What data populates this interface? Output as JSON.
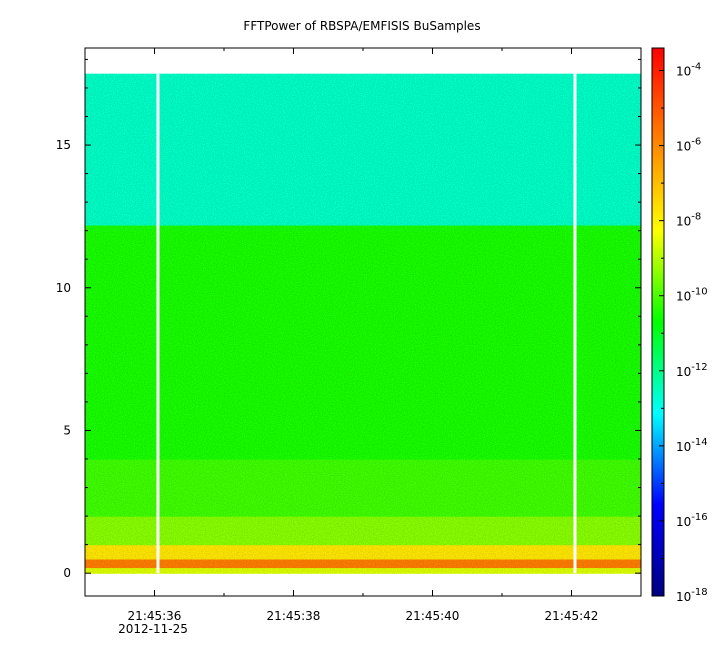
{
  "chart_data": {
    "type": "heatmap",
    "title": "FFTPower of RBSPA/EMFISIS  BuSamples",
    "date_label": "2012-11-25",
    "xlabel": "",
    "ylabel": "",
    "x_tick_labels": [
      "21:45:36",
      "21:45:38",
      "21:45:40",
      "21:45:42"
    ],
    "x_tick_seconds": [
      36,
      38,
      40,
      42
    ],
    "xlim_seconds": [
      35.0,
      43.0
    ],
    "y_ticks": [
      0,
      5,
      10,
      15
    ],
    "ylim": [
      -0.8,
      18.4
    ],
    "data_ymax": 17.5,
    "data_gaps_seconds": [
      36.05,
      42.05
    ],
    "bands": [
      {
        "y0": 0.0,
        "y1": 0.2,
        "log_power": -8.6
      },
      {
        "y0": 0.2,
        "y1": 0.5,
        "log_power": -5.8
      },
      {
        "y0": 0.5,
        "y1": 1.0,
        "log_power": -7.8
      },
      {
        "y0": 1.0,
        "y1": 2.0,
        "log_power": -9.4
      },
      {
        "y0": 2.0,
        "y1": 4.0,
        "log_power": -10.1
      },
      {
        "y0": 4.0,
        "y1": 12.2,
        "log_power": -10.4
      },
      {
        "y0": 12.2,
        "y1": 17.5,
        "log_power": -12.6
      }
    ],
    "colorbar": {
      "scale": "log",
      "range_exponent": [
        -18,
        -3.4
      ],
      "ticks": [
        {
          "base": "10",
          "exp": "-4"
        },
        {
          "base": "10",
          "exp": "-6"
        },
        {
          "base": "10",
          "exp": "-8"
        },
        {
          "base": "10",
          "exp": "-10"
        },
        {
          "base": "10",
          "exp": "-12"
        },
        {
          "base": "10",
          "exp": "-14"
        },
        {
          "base": "10",
          "exp": "-16"
        },
        {
          "base": "10",
          "exp": "-18"
        }
      ],
      "tick_exponents": [
        -4,
        -6,
        -8,
        -10,
        -12,
        -14,
        -16,
        -18
      ],
      "colors": [
        "#000080",
        "#0000ff",
        "#00ffff",
        "#00ff00",
        "#ffff00",
        "#ff8000",
        "#ff0000"
      ]
    },
    "grid": false
  }
}
